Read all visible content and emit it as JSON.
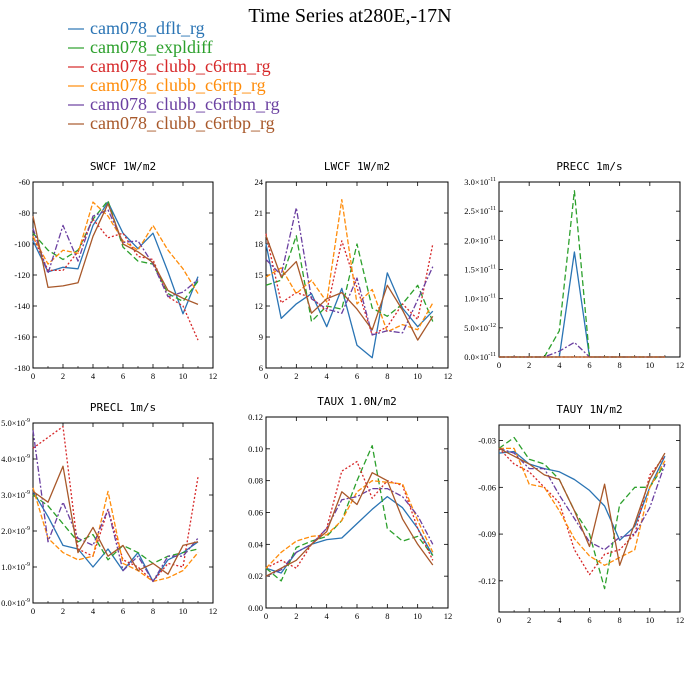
{
  "figure": {
    "title": "Time Series at280E,-17N"
  },
  "legend": [
    {
      "name": "cam078_dflt_rg",
      "color": "#2a74b4"
    },
    {
      "name": "cam078_expldiff",
      "color": "#2ca02c"
    },
    {
      "name": "cam078_clubb_c6rtm_rg",
      "color": "#d62728"
    },
    {
      "name": "cam078_clubb_c6rtp_rg",
      "color": "#ff8c0a"
    },
    {
      "name": "cam078_clubb_c6rtbm_rg",
      "color": "#6a3fa0"
    },
    {
      "name": "cam078_clubb_c6rtbp_rg",
      "color": "#a8582a"
    }
  ],
  "chart_data": [
    {
      "type": "line",
      "title": "SWCF  1W/m2",
      "xlim": [
        0,
        12
      ],
      "ylim": [
        -180,
        -60
      ],
      "xticks": [
        "0",
        "2",
        "4",
        "6",
        "8",
        "10",
        "12"
      ],
      "yticks": [
        "-180",
        "-160",
        "-140",
        "-120",
        "-100",
        "-80",
        "-60"
      ],
      "x": [
        0,
        1,
        2,
        3,
        4,
        5,
        6,
        7,
        8,
        9,
        10,
        11
      ],
      "series": [
        {
          "name": "cam078_dflt_rg",
          "values": [
            -98,
            -118,
            -115,
            -116,
            -88,
            -73,
            -93,
            -103,
            -93,
            -118,
            -145,
            -121
          ]
        },
        {
          "name": "cam078_expldiff",
          "values": [
            -93,
            -104,
            -110,
            -104,
            -84,
            -72,
            -102,
            -111,
            -113,
            -132,
            -137,
            -124
          ]
        },
        {
          "name": "cam078_clubb_c6rtm_rg",
          "values": [
            -95,
            -117,
            -117,
            -105,
            -84,
            -96,
            -93,
            -108,
            -110,
            -134,
            -140,
            -162
          ]
        },
        {
          "name": "cam078_clubb_c6rtp_rg",
          "values": [
            -95,
            -113,
            -104,
            -106,
            -73,
            -82,
            -98,
            -104,
            -88,
            -104,
            -116,
            -132
          ]
        },
        {
          "name": "cam078_clubb_c6rtbm_rg",
          "values": [
            -90,
            -119,
            -88,
            -111,
            -82,
            -78,
            -99,
            -98,
            -113,
            -134,
            -131,
            -123
          ]
        },
        {
          "name": "cam078_clubb_c6rtbp_rg",
          "values": [
            -82,
            -128,
            -127,
            -125,
            -95,
            -74,
            -100,
            -105,
            -112,
            -130,
            -135,
            -139
          ]
        }
      ]
    },
    {
      "type": "line",
      "title": "LWCF  1W/m2",
      "xlim": [
        0,
        12
      ],
      "ylim": [
        6,
        24
      ],
      "xticks": [
        "0",
        "2",
        "4",
        "6",
        "8",
        "10",
        "12"
      ],
      "yticks": [
        "6",
        "9",
        "12",
        "15",
        "18",
        "21",
        "24"
      ],
      "x": [
        0,
        1,
        2,
        3,
        4,
        5,
        6,
        7,
        8,
        9,
        10,
        11
      ],
      "series": [
        {
          "name": "cam078_dflt_rg",
          "values": [
            18,
            10.8,
            12.2,
            13.2,
            10,
            13.7,
            8.2,
            7,
            15.2,
            11.8,
            10,
            11.5
          ]
        },
        {
          "name": "cam078_expldiff",
          "values": [
            14,
            14.5,
            18.8,
            10.5,
            12,
            11.7,
            18,
            11.8,
            11,
            12.2,
            14,
            10.5
          ]
        },
        {
          "name": "cam078_clubb_c6rtm_rg",
          "values": [
            19,
            12.3,
            13.3,
            12.8,
            11.5,
            18.3,
            13.8,
            9.2,
            10,
            12.2,
            10.7,
            18
          ]
        },
        {
          "name": "cam078_clubb_c6rtp_rg",
          "values": [
            14.8,
            15.7,
            13.2,
            14.5,
            12.4,
            22.3,
            12.2,
            13.6,
            9.5,
            10.2,
            9.7,
            12.3
          ]
        },
        {
          "name": "cam078_clubb_c6rtbm_rg",
          "values": [
            16.5,
            15,
            21.5,
            12.7,
            11.7,
            11.3,
            14.7,
            9.2,
            9.6,
            9.4,
            12.6,
            15.8
          ]
        },
        {
          "name": "cam078_clubb_c6rtbp_rg",
          "values": [
            18.8,
            14.8,
            16.3,
            11.3,
            12.7,
            13.3,
            11.7,
            9.7,
            14,
            11.6,
            8.7,
            11
          ]
        }
      ]
    },
    {
      "type": "line",
      "title": "PRECC  1m/s",
      "xlim": [
        0,
        12
      ],
      "ylim": [
        0,
        3e-11
      ],
      "xticks": [
        "0",
        "2",
        "4",
        "6",
        "8",
        "10",
        "12"
      ],
      "yticks": [
        {
          "mant": "0.0",
          "exp": "-11"
        },
        {
          "mant": "5.0",
          "exp": "-12"
        },
        {
          "mant": "1.0",
          "exp": "-11"
        },
        {
          "mant": "1.5",
          "exp": "-11"
        },
        {
          "mant": "2.0",
          "exp": "-11"
        },
        {
          "mant": "2.5",
          "exp": "-11"
        },
        {
          "mant": "3.0",
          "exp": "-11"
        }
      ],
      "x": [
        0,
        1,
        2,
        3,
        4,
        5,
        6,
        7,
        8,
        9,
        10,
        11
      ],
      "series": [
        {
          "name": "cam078_dflt_rg",
          "values": [
            0,
            0,
            0,
            0,
            0,
            1.8e-11,
            0,
            0,
            0,
            0,
            0,
            0
          ]
        },
        {
          "name": "cam078_expldiff",
          "values": [
            0,
            0,
            0,
            0,
            4.5e-12,
            2.85e-11,
            0,
            0,
            0,
            0,
            0,
            0
          ]
        },
        {
          "name": "cam078_clubb_c6rtm_rg",
          "values": [
            0,
            0,
            0,
            0,
            0,
            0,
            0,
            0,
            0,
            0,
            0,
            0
          ]
        },
        {
          "name": "cam078_clubb_c6rtp_rg",
          "values": [
            0,
            0,
            0,
            0,
            0,
            0,
            0,
            0,
            0,
            0,
            0,
            0
          ]
        },
        {
          "name": "cam078_clubb_c6rtbm_rg",
          "values": [
            0,
            0,
            0,
            0,
            1e-12,
            2.5e-12,
            0,
            0,
            0,
            0,
            0,
            0
          ]
        },
        {
          "name": "cam078_clubb_c6rtbp_rg",
          "values": [
            0,
            0,
            0,
            0,
            0,
            0,
            0,
            0,
            0,
            0,
            0,
            0
          ]
        }
      ]
    },
    {
      "type": "line",
      "title": "PRECL  1m/s",
      "xlim": [
        0,
        12
      ],
      "ylim": [
        0,
        5e-09
      ],
      "xticks": [
        "0",
        "2",
        "4",
        "6",
        "8",
        "10",
        "12"
      ],
      "yticks": [
        {
          "mant": "0.0",
          "exp": "-9"
        },
        {
          "mant": "1.0",
          "exp": "-9"
        },
        {
          "mant": "2.0",
          "exp": "-9"
        },
        {
          "mant": "3.0",
          "exp": "-9"
        },
        {
          "mant": "4.0",
          "exp": "-9"
        },
        {
          "mant": "5.0",
          "exp": "-9"
        }
      ],
      "x": [
        0,
        1,
        2,
        3,
        4,
        5,
        6,
        7,
        8,
        9,
        10,
        11
      ],
      "series": [
        {
          "name": "cam078_dflt_rg",
          "values": [
            3.1e-09,
            2.4e-09,
            1.6e-09,
            1.5e-09,
            1e-09,
            1.5e-09,
            9e-10,
            1.4e-09,
            6e-10,
            1.2e-09,
            1.4e-09,
            1.7e-09
          ]
        },
        {
          "name": "cam078_expldiff",
          "values": [
            3e-09,
            2.7e-09,
            2.2e-09,
            1.7e-09,
            1.9e-09,
            1.2e-09,
            1.6e-09,
            1.4e-09,
            1.1e-09,
            1.3e-09,
            1.4e-09,
            1.5e-09
          ]
        },
        {
          "name": "cam078_clubb_c6rtm_rg",
          "values": [
            4.3e-09,
            4.6e-09,
            4.9e-09,
            1.5e-09,
            1.3e-09,
            2.6e-09,
            1.2e-09,
            1e-09,
            6e-10,
            1.1e-09,
            1e-09,
            3.5e-09
          ]
        },
        {
          "name": "cam078_clubb_c6rtp_rg",
          "values": [
            3.2e-09,
            1.8e-09,
            1.4e-09,
            1.2e-09,
            1.3e-09,
            3.1e-09,
            1.1e-09,
            9e-10,
            6e-10,
            7e-10,
            9e-10,
            1.4e-09
          ]
        },
        {
          "name": "cam078_clubb_c6rtbm_rg",
          "values": [
            4.8e-09,
            1.7e-09,
            2.8e-09,
            1.8e-09,
            1.6e-09,
            2.6e-09,
            9e-10,
            1.3e-09,
            6e-10,
            1.3e-09,
            1.3e-09,
            1.8e-09
          ]
        },
        {
          "name": "cam078_clubb_c6rtbp_rg",
          "values": [
            3.1e-09,
            2.8e-09,
            3.8e-09,
            1.4e-09,
            2.1e-09,
            1.3e-09,
            1.6e-09,
            9e-10,
            1.1e-09,
            8e-10,
            1.6e-09,
            1.7e-09
          ]
        }
      ]
    },
    {
      "type": "line",
      "title": "TAUX  1.0N/m2",
      "xlim": [
        0,
        12
      ],
      "ylim": [
        0.0,
        0.12
      ],
      "xticks": [
        "0",
        "2",
        "4",
        "6",
        "8",
        "10",
        "12"
      ],
      "yticks": [
        "0.00",
        "0.02",
        "0.04",
        "0.06",
        "0.08",
        "0.10",
        "0.12"
      ],
      "x": [
        0,
        1,
        2,
        3,
        4,
        5,
        6,
        7,
        8,
        9,
        10,
        11
      ],
      "series": [
        {
          "name": "cam078_dflt_rg",
          "values": [
            0.025,
            0.022,
            0.035,
            0.04,
            0.043,
            0.044,
            0.053,
            0.062,
            0.07,
            0.063,
            0.05,
            0.033
          ]
        },
        {
          "name": "cam078_expldiff",
          "values": [
            0.025,
            0.017,
            0.038,
            0.042,
            0.045,
            0.055,
            0.08,
            0.102,
            0.05,
            0.042,
            0.045,
            0.033
          ]
        },
        {
          "name": "cam078_clubb_c6rtm_rg",
          "values": [
            0.025,
            0.03,
            0.025,
            0.04,
            0.05,
            0.086,
            0.092,
            0.069,
            0.08,
            0.077,
            0.05,
            0.03
          ]
        },
        {
          "name": "cam078_clubb_c6rtp_rg",
          "values": [
            0.025,
            0.035,
            0.042,
            0.045,
            0.046,
            0.055,
            0.073,
            0.08,
            0.079,
            0.078,
            0.055,
            0.035
          ]
        },
        {
          "name": "cam078_clubb_c6rtbm_rg",
          "values": [
            0.02,
            0.024,
            0.035,
            0.04,
            0.05,
            0.068,
            0.07,
            0.075,
            0.075,
            0.07,
            0.058,
            0.04
          ]
        },
        {
          "name": "cam078_clubb_c6rtbp_rg",
          "values": [
            0.02,
            0.025,
            0.03,
            0.04,
            0.048,
            0.073,
            0.065,
            0.085,
            0.08,
            0.056,
            0.04,
            0.027
          ]
        }
      ]
    },
    {
      "type": "line",
      "title": "TAUY  1N/m2",
      "xlim": [
        0,
        12
      ],
      "ylim": [
        -0.14,
        -0.02
      ],
      "xticks": [
        "0",
        "2",
        "4",
        "6",
        "8",
        "10",
        "12"
      ],
      "yticks": [
        "-0.12",
        "-0.09",
        "-0.06",
        "-0.03"
      ],
      "x": [
        0,
        1,
        2,
        3,
        4,
        5,
        6,
        7,
        8,
        9,
        10,
        11
      ],
      "series": [
        {
          "name": "cam078_dflt_rg",
          "values": [
            -0.038,
            -0.037,
            -0.045,
            -0.048,
            -0.05,
            -0.055,
            -0.062,
            -0.072,
            -0.094,
            -0.085,
            -0.06,
            -0.04
          ]
        },
        {
          "name": "cam078_expldiff",
          "values": [
            -0.035,
            -0.028,
            -0.042,
            -0.045,
            -0.055,
            -0.075,
            -0.09,
            -0.125,
            -0.071,
            -0.06,
            -0.06,
            -0.045
          ]
        },
        {
          "name": "cam078_clubb_c6rtm_rg",
          "values": [
            -0.035,
            -0.045,
            -0.05,
            -0.06,
            -0.07,
            -0.1,
            -0.116,
            -0.103,
            -0.1,
            -0.09,
            -0.052,
            -0.04
          ]
        },
        {
          "name": "cam078_clubb_c6rtp_rg",
          "values": [
            -0.035,
            -0.035,
            -0.058,
            -0.06,
            -0.075,
            -0.093,
            -0.104,
            -0.11,
            -0.105,
            -0.1,
            -0.06,
            -0.043
          ]
        },
        {
          "name": "cam078_clubb_c6rtbm_rg",
          "values": [
            -0.035,
            -0.038,
            -0.048,
            -0.048,
            -0.065,
            -0.08,
            -0.095,
            -0.1,
            -0.092,
            -0.09,
            -0.073,
            -0.045
          ]
        },
        {
          "name": "cam078_clubb_c6rtbp_rg",
          "values": [
            -0.035,
            -0.04,
            -0.045,
            -0.052,
            -0.055,
            -0.075,
            -0.098,
            -0.058,
            -0.11,
            -0.083,
            -0.055,
            -0.038
          ]
        }
      ]
    }
  ]
}
